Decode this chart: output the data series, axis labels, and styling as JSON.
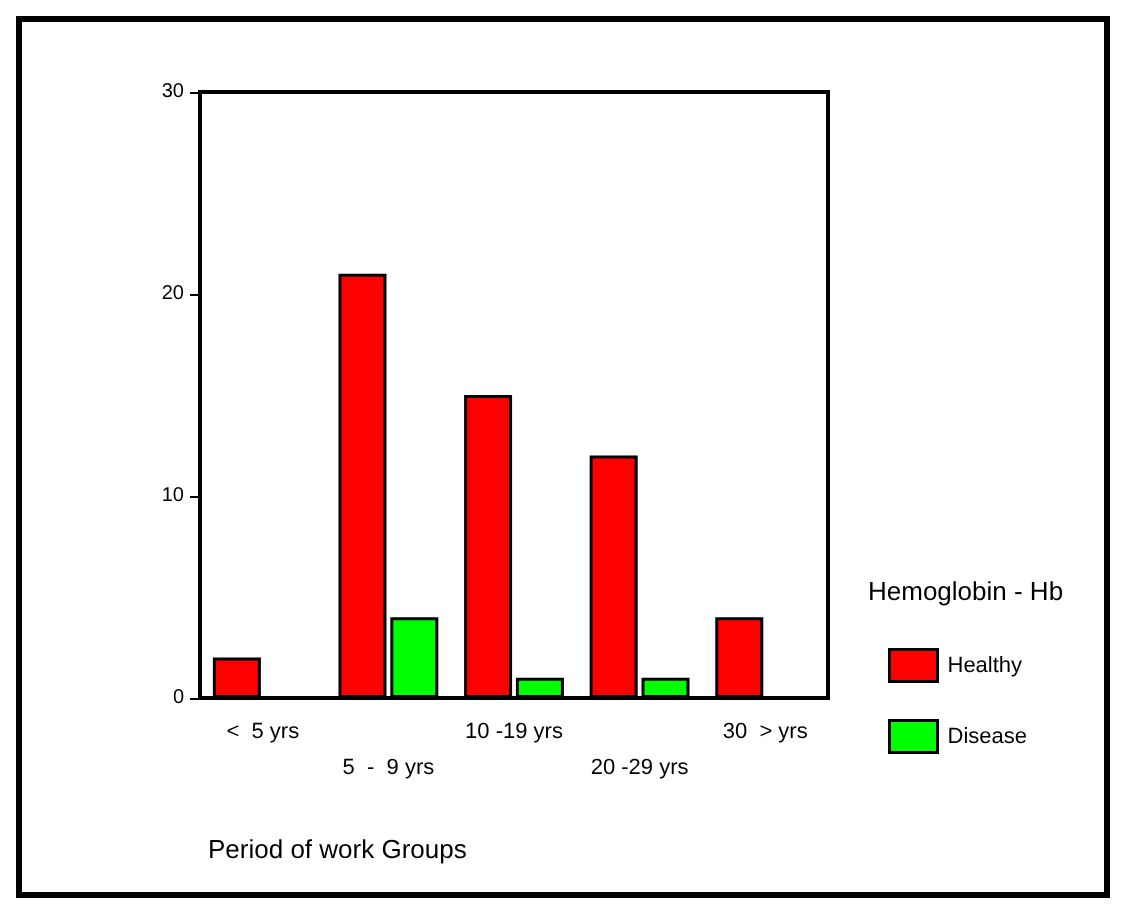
{
  "chart_data": {
    "type": "bar",
    "xlabel": "Period of work Groups",
    "legend_title": "Hemoglobin - Hb",
    "categories": [
      "<  5 yrs",
      "5  -  9 yrs",
      "10 -19 yrs",
      "20 -29 yrs",
      "30  > yrs"
    ],
    "series": [
      {
        "name": "Healthy",
        "color": "#ff0000",
        "values": [
          2,
          21,
          15,
          12,
          4
        ]
      },
      {
        "name": "Disease",
        "color": "#00ff00",
        "values": [
          0,
          4,
          1,
          1,
          0
        ]
      }
    ],
    "ylim": [
      0,
      30
    ],
    "yticks": [
      0,
      10,
      20,
      30
    ],
    "grid": false,
    "legend": "right"
  }
}
